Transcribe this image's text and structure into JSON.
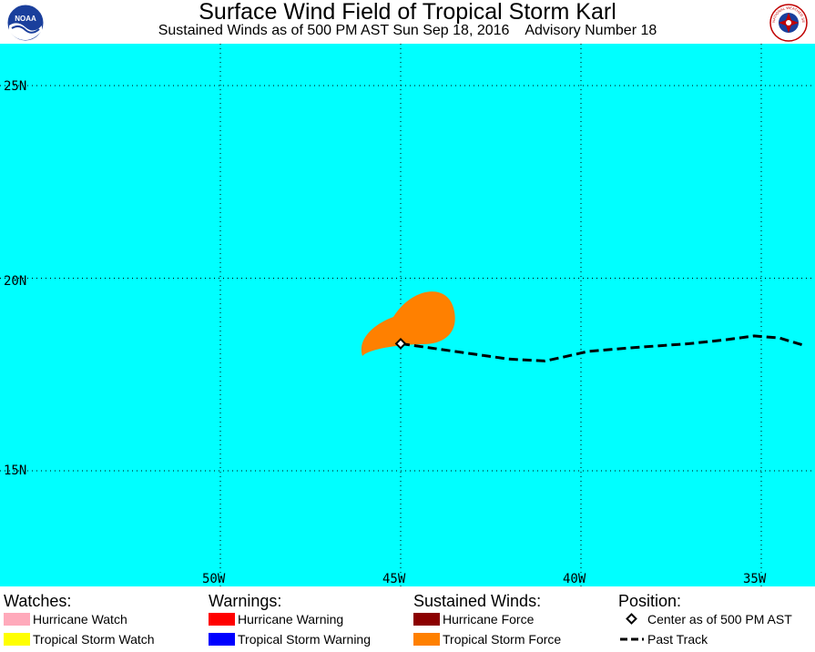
{
  "header": {
    "title": "Surface Wind Field of Tropical Storm Karl",
    "subtitle": "Sustained Winds as of 500 PM AST Sun Sep 18, 2016    Advisory Number 18",
    "logo_left_text": "NOAA",
    "logo_right_text": "NATIONAL WEATHER SERVICE"
  },
  "map": {
    "ocean_color": "#00ffff",
    "lat_labels": [
      "25N",
      "20N",
      "15N"
    ],
    "lon_labels": [
      "50W",
      "45W",
      "40W",
      "35W"
    ],
    "storm_center": {
      "lat": 18.3,
      "lon": 45.0
    },
    "wind_field_color": "#ff8000",
    "past_track": [
      {
        "lat": 18.3,
        "lon": 45.0
      },
      {
        "lat": 18.1,
        "lon": 43.5
      },
      {
        "lat": 17.9,
        "lon": 42.0
      },
      {
        "lat": 17.85,
        "lon": 41.0
      },
      {
        "lat": 17.95,
        "lon": 40.5
      },
      {
        "lat": 18.1,
        "lon": 39.8
      },
      {
        "lat": 18.2,
        "lon": 38.5
      },
      {
        "lat": 18.3,
        "lon": 37.0
      },
      {
        "lat": 18.4,
        "lon": 36.0
      },
      {
        "lat": 18.5,
        "lon": 35.2
      },
      {
        "lat": 18.45,
        "lon": 34.5
      },
      {
        "lat": 18.25,
        "lon": 33.8
      }
    ]
  },
  "legend": {
    "watches": {
      "heading": "Watches:",
      "items": [
        {
          "label": "Hurricane Watch",
          "color": "#ffaabb"
        },
        {
          "label": "Tropical Storm Watch",
          "color": "#ffff00"
        }
      ]
    },
    "warnings": {
      "heading": "Warnings:",
      "items": [
        {
          "label": "Hurricane Warning",
          "color": "#ff0000"
        },
        {
          "label": "Tropical Storm Warning",
          "color": "#0000ff"
        }
      ]
    },
    "winds": {
      "heading": "Sustained Winds:",
      "items": [
        {
          "label": "Hurricane Force",
          "color": "#8b0000"
        },
        {
          "label": "Tropical Storm Force",
          "color": "#ff8000"
        }
      ]
    },
    "position": {
      "heading": "Position:",
      "items": [
        {
          "label": "Center as of 500 PM AST",
          "icon": "diamond-icon"
        },
        {
          "label": "Past Track",
          "icon": "dashed-line-icon"
        }
      ]
    }
  }
}
